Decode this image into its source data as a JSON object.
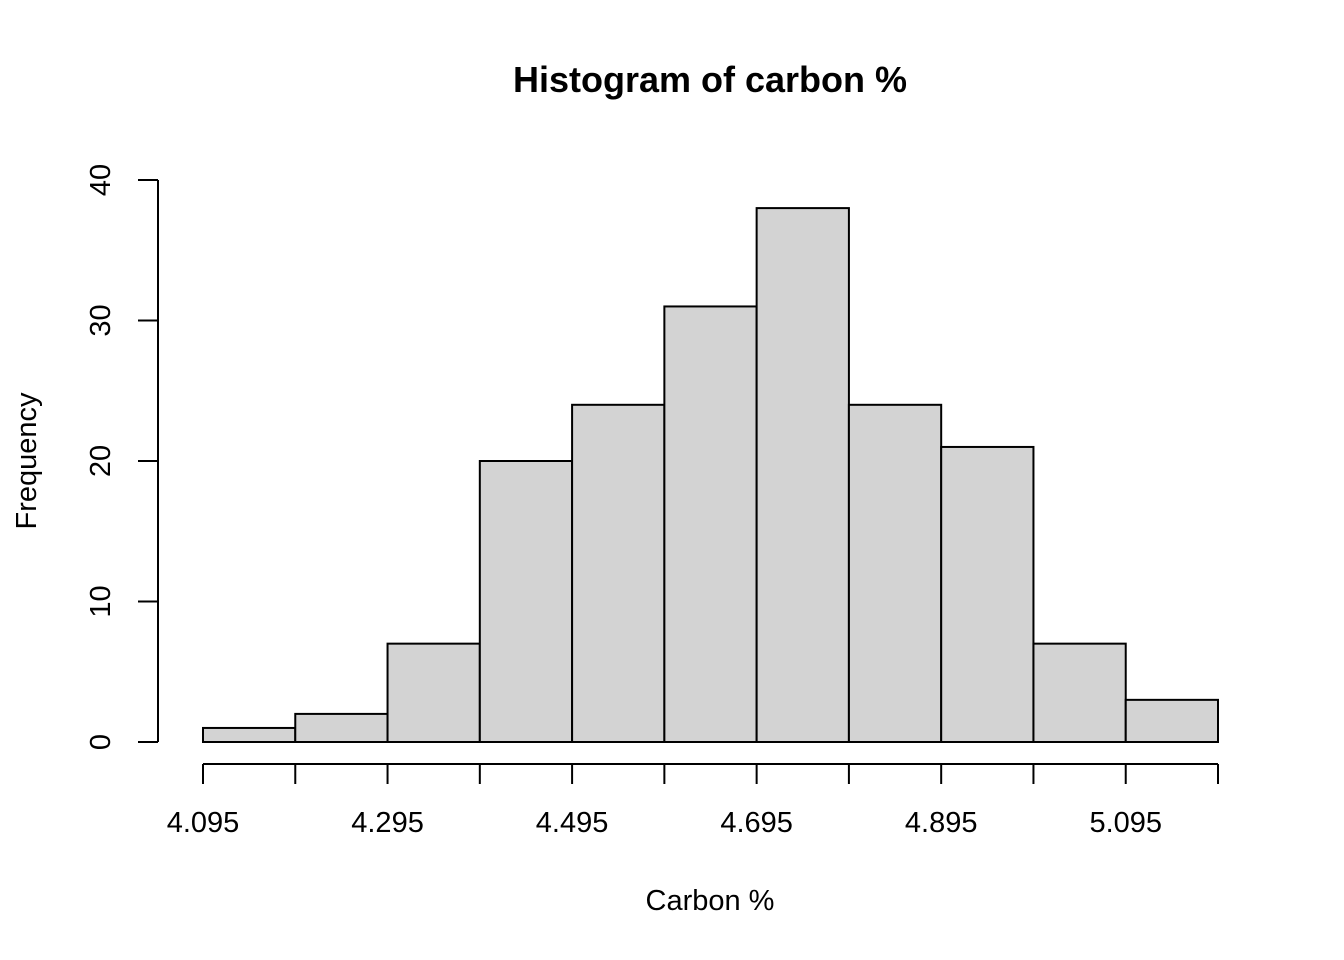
{
  "chart_data": {
    "type": "bar",
    "title": "Histogram of carbon %",
    "xlabel": "Carbon %",
    "ylabel": "Frequency",
    "bin_edges": [
      4.095,
      4.195,
      4.295,
      4.395,
      4.495,
      4.595,
      4.695,
      4.795,
      4.895,
      4.995,
      5.095,
      5.195
    ],
    "values": [
      1,
      2,
      7,
      20,
      24,
      31,
      38,
      24,
      21,
      7,
      3
    ],
    "x_tick_labels": [
      "4.095",
      "4.295",
      "4.495",
      "4.695",
      "4.895",
      "5.095"
    ],
    "y_ticks": [
      0,
      10,
      20,
      30,
      40
    ],
    "ylim": [
      0,
      40
    ],
    "xlim": [
      4.095,
      5.195
    ],
    "bar_color": "#d3d3d3",
    "grid": false,
    "legend": "none"
  }
}
